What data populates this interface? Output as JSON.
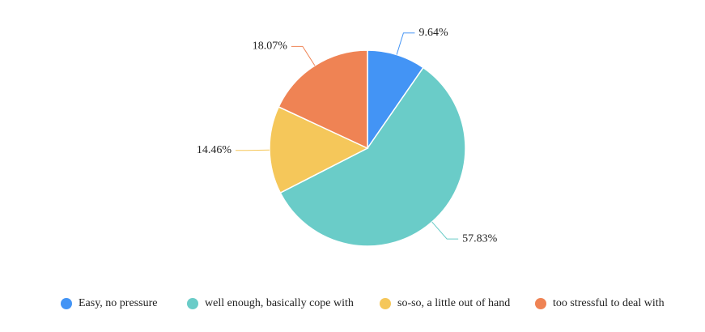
{
  "chart_data": {
    "type": "pie",
    "categories": [
      "Easy, no pressure",
      "well enough, basically cope with",
      "so-so, a little out of hand",
      "too stressful to deal with"
    ],
    "values": [
      9.64,
      57.83,
      14.46,
      18.07
    ],
    "value_labels": [
      "9.64%",
      "57.83%",
      "14.46%",
      "18.07%"
    ],
    "colors": [
      "#4394f5",
      "#6accc8",
      "#f5c75a",
      "#ef8354"
    ],
    "legend": "bottom"
  }
}
